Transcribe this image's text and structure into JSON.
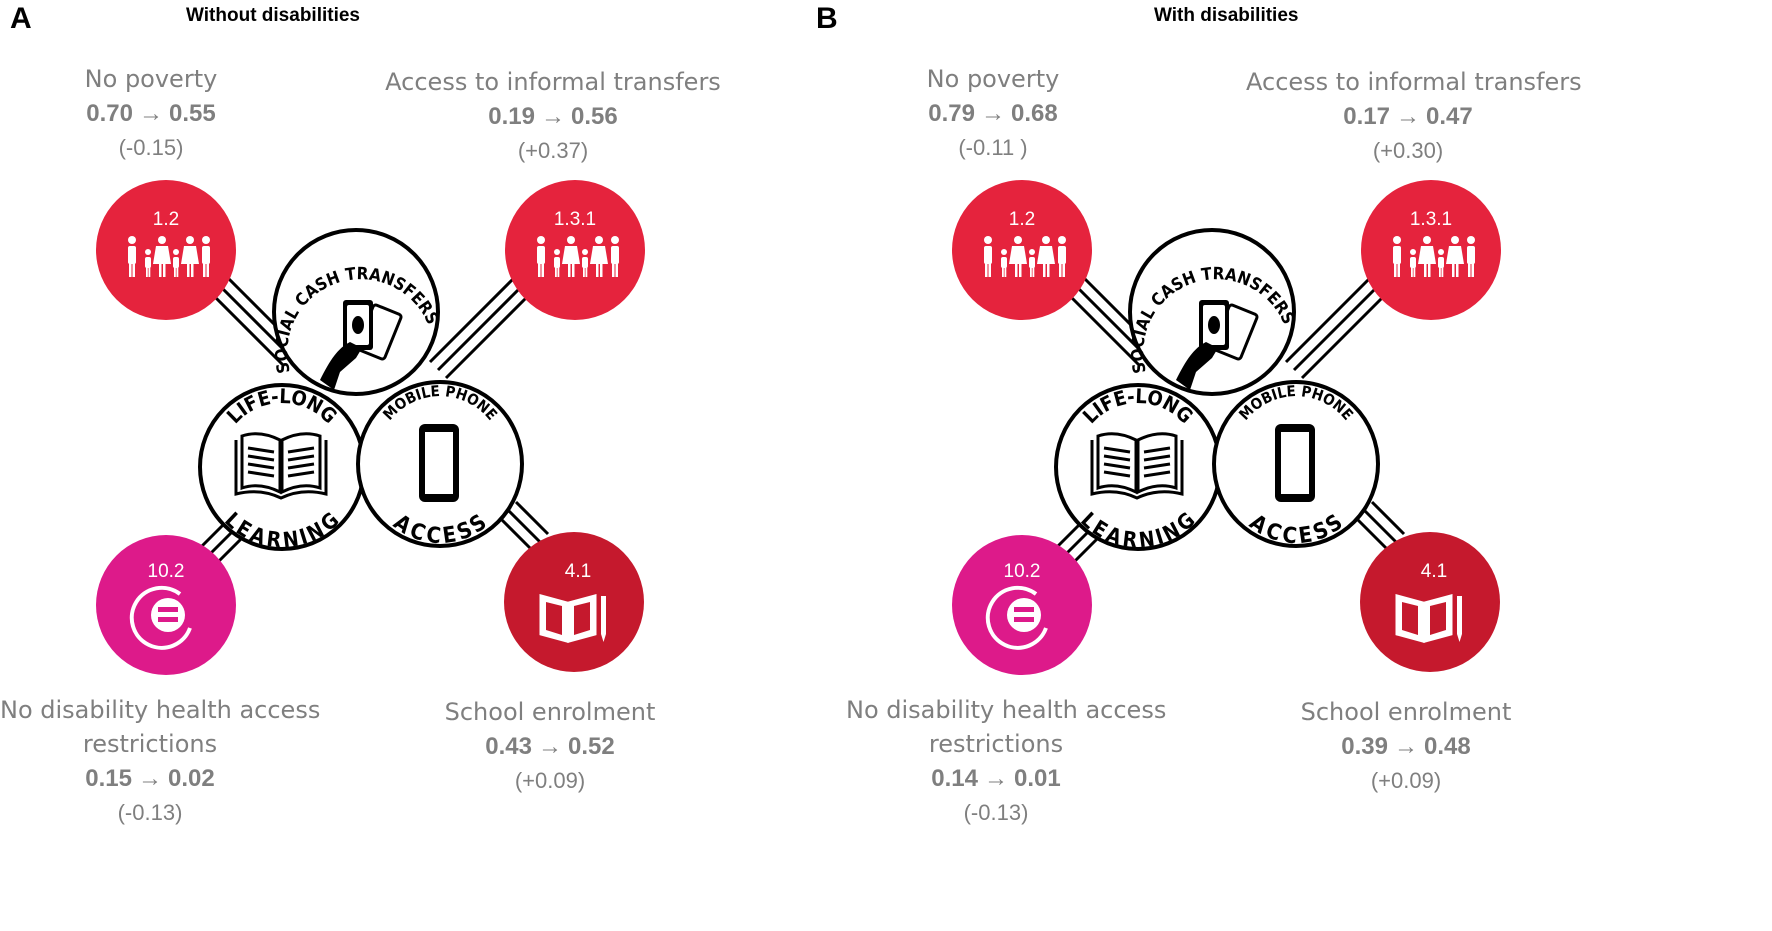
{
  "panels": [
    {
      "letter": "A",
      "title": "Without disabilities",
      "indicators": {
        "poverty": {
          "label": "No poverty",
          "before": "0.70",
          "after": "0.55",
          "change": "(-0.15)"
        },
        "transfers": {
          "label": "Access to informal transfers",
          "before": "0.19",
          "after": "0.56",
          "change": "(+0.37)"
        },
        "health": {
          "label": "No disability health access",
          "label2": "restrictions",
          "before": "0.15",
          "after": "0.02",
          "change": "(-0.13)"
        },
        "school": {
          "label": "School enrolment",
          "before": "0.43",
          "after": "0.52",
          "change": "(+0.09)"
        }
      }
    },
    {
      "letter": "B",
      "title": "With disabilities",
      "indicators": {
        "poverty": {
          "label": "No poverty",
          "before": "0.79",
          "after": "0.68",
          "change": "(-0.11 )"
        },
        "transfers": {
          "label": "Access to informal transfers",
          "before": "0.17",
          "after": "0.47",
          "change": "(+0.30)"
        },
        "health": {
          "label": "No disability health access",
          "label2": "restrictions",
          "before": "0.14",
          "after": "0.01",
          "change": "(-0.13)"
        },
        "school": {
          "label": "School enrolment",
          "before": "0.39",
          "after": "0.48",
          "change": "(+0.09)"
        }
      }
    }
  ],
  "arrow_symbol": "→",
  "sdg_badges": {
    "poverty": {
      "code": "1.2",
      "color": "#e5233d",
      "icon": "family-icon"
    },
    "transfers": {
      "code": "1.3.1",
      "color": "#e5233d",
      "icon": "family-icon"
    },
    "health": {
      "code": "10.2",
      "color": "#dd1a8a",
      "icon": "equality-icon"
    },
    "school": {
      "code": "4.1",
      "color": "#c5192d",
      "icon": "book-pencil-icon"
    }
  },
  "hubs": {
    "cash": {
      "top": "SOCIAL CASH TRANSFERS",
      "icon": "cash-hand-icon"
    },
    "learning": {
      "top": "LIFE-LONG",
      "bottom": "LEARNING",
      "icon": "open-book-icon"
    },
    "phone": {
      "top": "MOBILE PHONE",
      "bottom": "ACCESS",
      "icon": "phone-icon"
    }
  }
}
